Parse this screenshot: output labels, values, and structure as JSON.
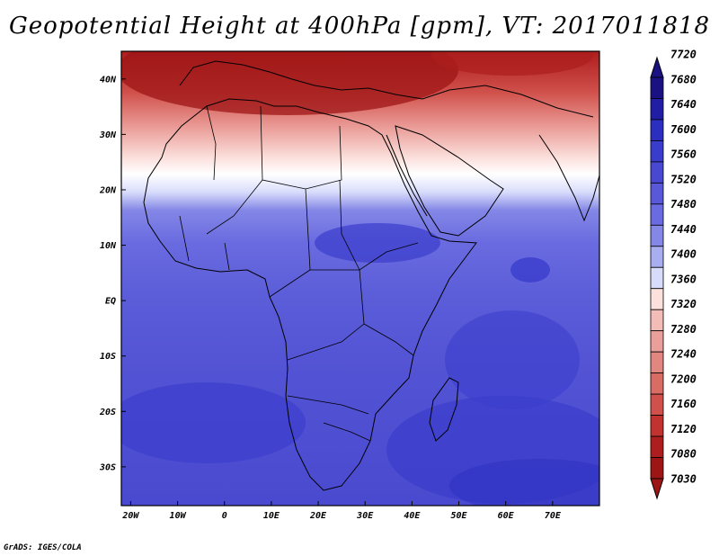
{
  "title": "Geopotential Height at 400hPa [gpm], VT: 2017011818",
  "credit": "GrADS: IGES/COLA",
  "lon_labels": [
    "20W",
    "10W",
    "0",
    "10E",
    "20E",
    "30E",
    "40E",
    "50E",
    "60E",
    "70E"
  ],
  "lon_values": [
    -20,
    -10,
    0,
    10,
    20,
    30,
    40,
    50,
    60,
    70
  ],
  "lat_labels": [
    "40N",
    "30N",
    "20N",
    "10N",
    "EQ",
    "10S",
    "20S",
    "30S"
  ],
  "lat_values": [
    40,
    30,
    20,
    10,
    0,
    -10,
    -20,
    -30
  ],
  "map_extent": {
    "lon": [
      -22,
      80
    ],
    "lat": [
      -37,
      45
    ]
  },
  "colorbar": {
    "labels": [
      "7720",
      "7680",
      "7640",
      "7600",
      "7560",
      "7520",
      "7480",
      "7440",
      "7400",
      "7360",
      "7320",
      "7280",
      "7240",
      "7200",
      "7160",
      "7120",
      "7080",
      "7030"
    ],
    "colors": [
      "#1a1283",
      "#211ea5",
      "#2c2ec0",
      "#3a3dcc",
      "#4848d2",
      "#5858d8",
      "#6a6be0",
      "#8487e6",
      "#a8aeef",
      "#d8dcfb",
      "#fbe0dc",
      "#f4bcb7",
      "#eb9f9a",
      "#e28680",
      "#da6c66",
      "#d0504b",
      "#c1332f",
      "#ad1e1e",
      "#9e1515"
    ]
  }
}
